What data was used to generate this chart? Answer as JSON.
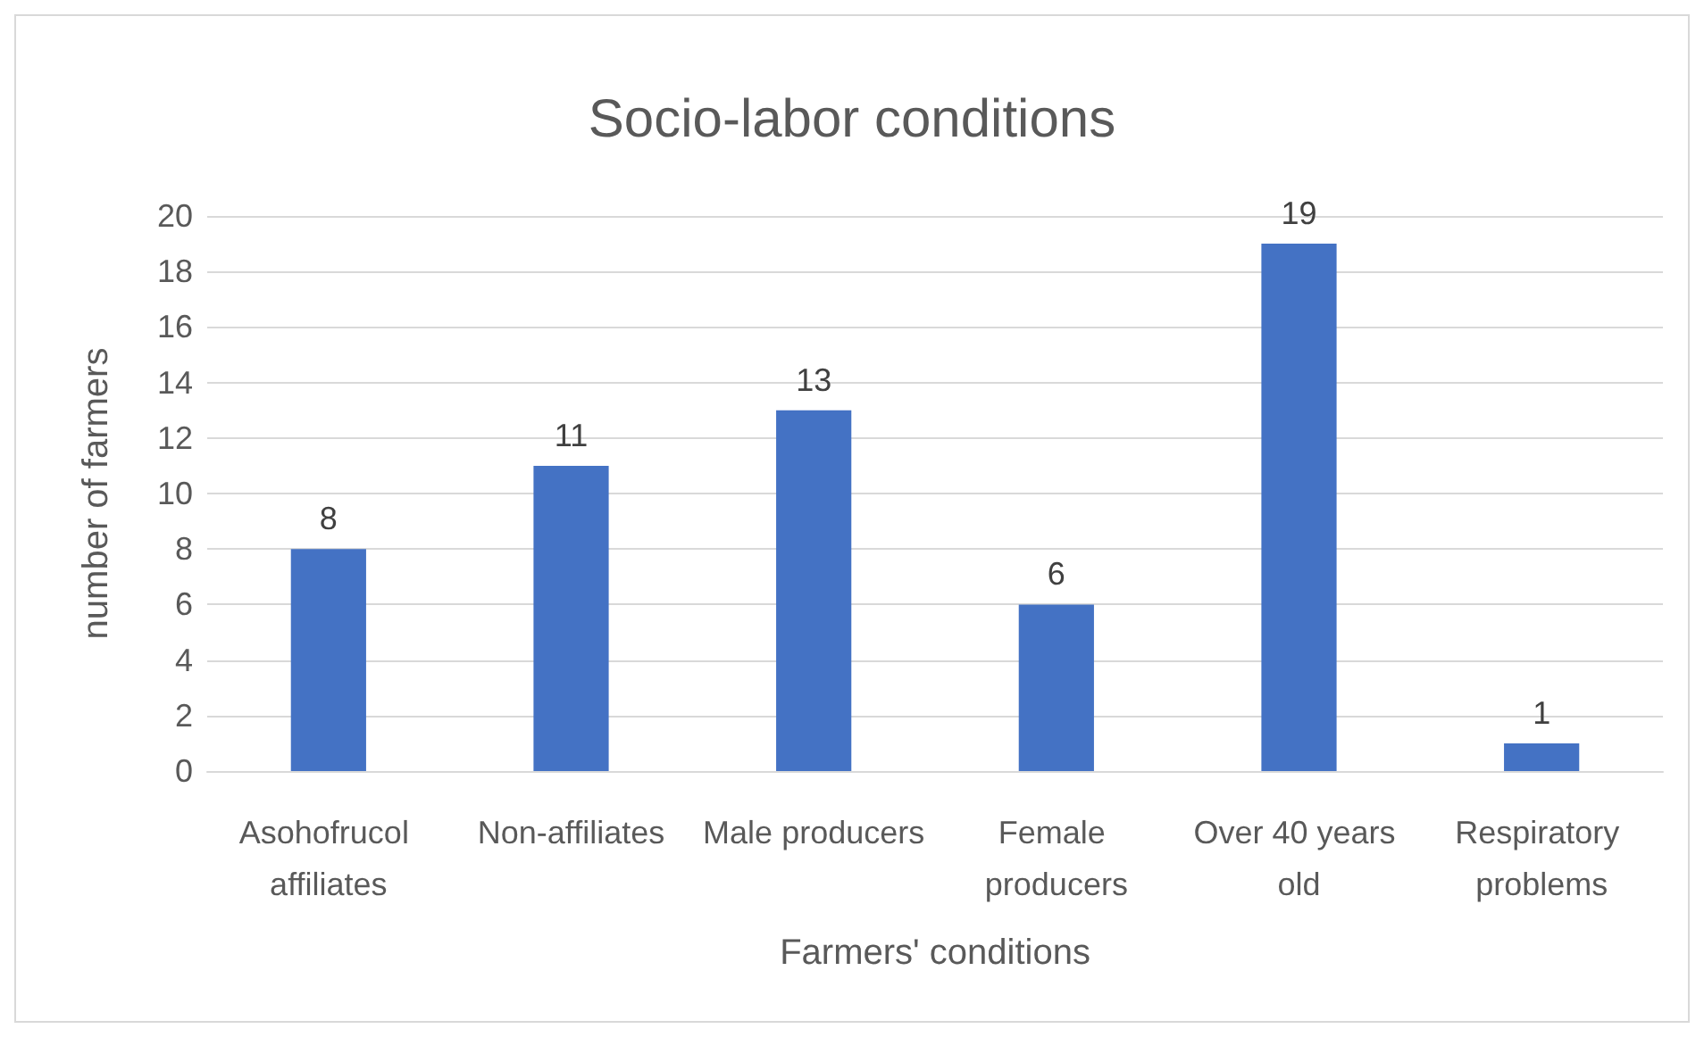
{
  "chart_data": {
    "type": "bar",
    "title": "Socio-labor conditions",
    "xlabel": "Farmers' conditions",
    "ylabel": "number of farmers",
    "categories": [
      "Asohofrucol affiliates",
      "Non-affiliates",
      "Male producers",
      "Female producers",
      "Over 40 years old",
      "Respiratory problems"
    ],
    "values": [
      8,
      11,
      13,
      6,
      19,
      1
    ],
    "color": "#4472c4",
    "ylim": [
      0,
      20
    ],
    "yticks": [
      0,
      2,
      4,
      6,
      8,
      10,
      12,
      14,
      16,
      18,
      20
    ],
    "grid": "y",
    "data_labels": true
  }
}
